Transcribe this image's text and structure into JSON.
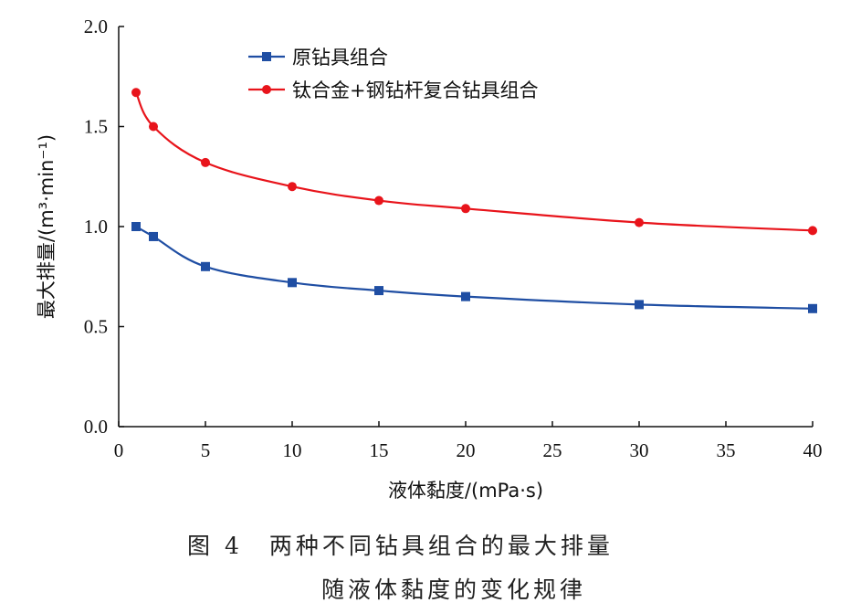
{
  "chart_data": {
    "type": "line",
    "xlabel": "液体黏度/(mPa·s)",
    "ylabel": "最大排量/(m³·min⁻¹)",
    "xlim": [
      0,
      40
    ],
    "ylim": [
      0,
      2.0
    ],
    "xticks": [
      0,
      5,
      10,
      15,
      20,
      25,
      30,
      35,
      40
    ],
    "yticks": [
      "0.0",
      "0.5",
      "1.0",
      "1.5",
      "2.0"
    ],
    "grid": false,
    "legend_position": "top-center",
    "x": [
      1,
      2,
      5,
      10,
      15,
      20,
      30,
      40
    ],
    "series": [
      {
        "name": "原钻具组合",
        "color": "#1f4ea3",
        "marker": "square",
        "values": [
          1.0,
          0.95,
          0.8,
          0.72,
          0.68,
          0.65,
          0.61,
          0.59
        ]
      },
      {
        "name": "钛合金+钢钻杆复合钻具组合",
        "color": "#e8141b",
        "marker": "circle",
        "values": [
          1.67,
          1.5,
          1.32,
          1.2,
          1.13,
          1.09,
          1.02,
          0.98
        ]
      }
    ]
  },
  "caption": {
    "line1": "图 4　两种不同钻具组合的最大排量",
    "line2": "随液体黏度的变化规律"
  }
}
